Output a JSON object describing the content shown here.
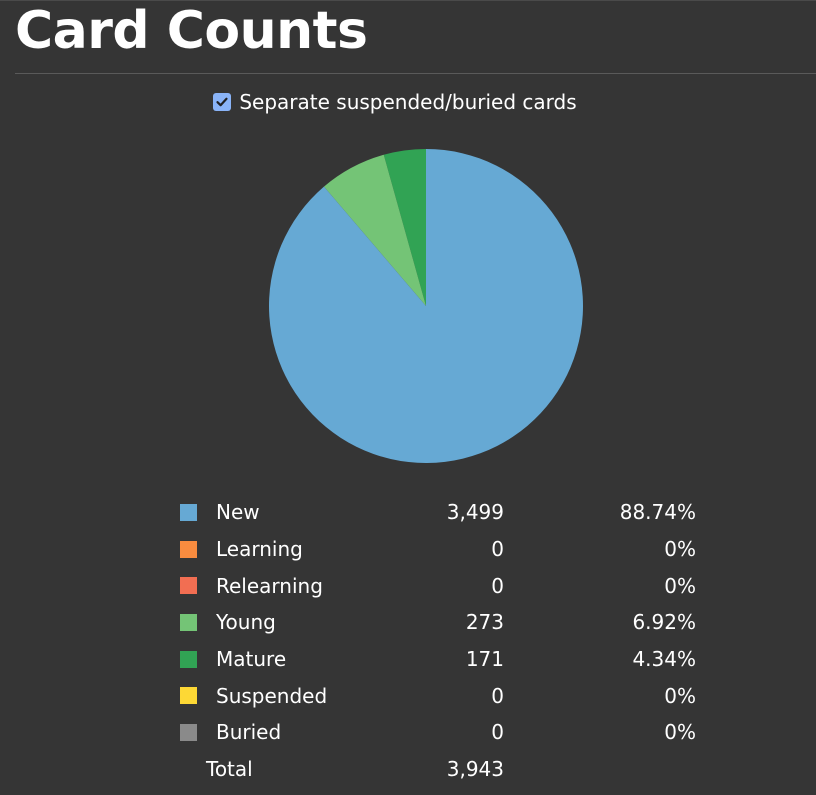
{
  "title": "Card Counts",
  "toggle": {
    "label": "Separate suspended/buried cards",
    "checked": true
  },
  "colors": {
    "background": "#353535",
    "checkbox": "#8ab4f8"
  },
  "chart_data": {
    "type": "pie",
    "title": "",
    "categories": [
      "New",
      "Learning",
      "Relearning",
      "Young",
      "Mature",
      "Suspended",
      "Buried"
    ],
    "values": [
      3499,
      0,
      0,
      273,
      171,
      0,
      0
    ],
    "colors": [
      "#66a9d4",
      "#f98c3f",
      "#f26e52",
      "#74c476",
      "#31a354",
      "#fdd835",
      "#8a8a8a"
    ],
    "rows": [
      {
        "label": "New",
        "count": "3,499",
        "percent": "88.74%"
      },
      {
        "label": "Learning",
        "count": "0",
        "percent": "0%"
      },
      {
        "label": "Relearning",
        "count": "0",
        "percent": "0%"
      },
      {
        "label": "Young",
        "count": "273",
        "percent": "6.92%"
      },
      {
        "label": "Mature",
        "count": "171",
        "percent": "4.34%"
      },
      {
        "label": "Suspended",
        "count": "0",
        "percent": "0%"
      },
      {
        "label": "Buried",
        "count": "0",
        "percent": "0%"
      }
    ],
    "total": {
      "label": "Total",
      "count": "3,943"
    }
  }
}
